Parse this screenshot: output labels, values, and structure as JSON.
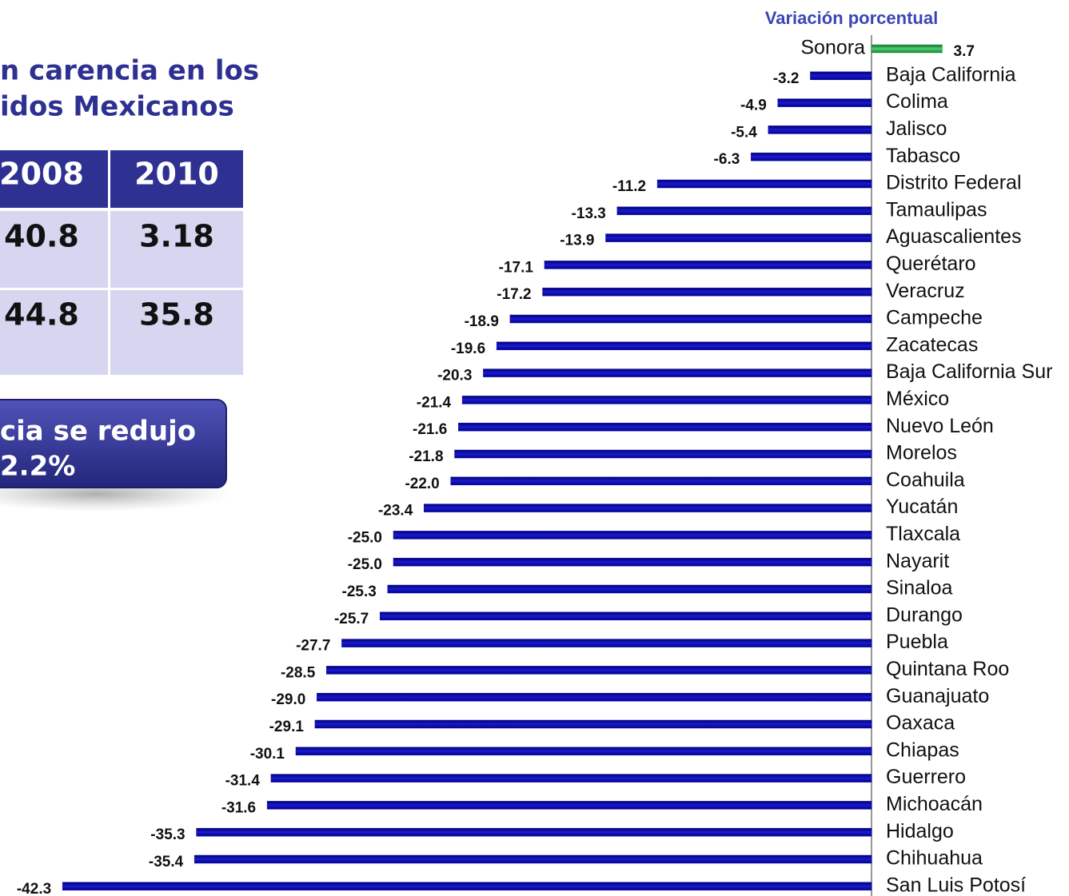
{
  "header": {
    "subtitle": [
      "n carencia en los",
      "idos Mexicanos"
    ]
  },
  "table": {
    "headers": [
      "2008",
      "2010"
    ],
    "rows": [
      [
        "40.8",
        "3.18"
      ],
      [
        "44.8",
        "35.8"
      ]
    ]
  },
  "callout": {
    "lines": [
      "cia se redujo",
      "2.2%"
    ]
  },
  "chart_data": {
    "type": "hbar",
    "title": "Variación porcentual",
    "categories": [
      "Sonora",
      "Baja California",
      "Colima",
      "Jalisco",
      "Tabasco",
      "Distrito Federal",
      "Tamaulipas",
      "Aguascalientes",
      "Querétaro",
      "Veracruz",
      "Campeche",
      "Zacatecas",
      "Baja California Sur",
      "México",
      "Nuevo León",
      "Morelos",
      "Coahuila",
      "Yucatán",
      "Tlaxcala",
      "Nayarit",
      "Sinaloa",
      "Durango",
      "Puebla",
      "Quintana Roo",
      "Guanajuato",
      "Oaxaca",
      "Chiapas",
      "Guerrero",
      "Michoacán",
      "Hidalgo",
      "Chihuahua",
      "San Luis Potosí"
    ],
    "values": [
      3.7,
      -3.2,
      -4.9,
      -5.4,
      -6.3,
      -11.2,
      -13.3,
      -13.9,
      -17.1,
      -17.2,
      -18.9,
      -19.6,
      -20.3,
      -21.4,
      -21.6,
      -21.8,
      -22.0,
      -23.4,
      -25.0,
      -25.0,
      -25.3,
      -25.7,
      -27.7,
      -28.5,
      -29.0,
      -29.1,
      -30.1,
      -31.4,
      -31.6,
      -35.3,
      -35.4,
      -42.3
    ],
    "value_labels": [
      "3.7",
      "-3.2",
      "-4.9",
      "-5.4",
      "-6.3",
      "-11.2",
      "-13.3",
      "-13.9",
      "-17.1",
      "-17.2",
      "-18.9",
      "-19.6",
      "-20.3",
      "-21.4",
      "-21.6",
      "-21.8",
      "-22.0",
      "-23.4",
      "-25.0",
      "-25.0",
      "-25.3",
      "-25.7",
      "-27.7",
      "-28.5",
      "-29.0",
      "-29.1",
      "-30.1",
      "-31.4",
      "-31.6",
      "-35.3",
      "-35.4",
      "-42.3"
    ],
    "colors": {
      "positive": "#2aa84a",
      "negative": "#1010b0"
    },
    "xlim": [
      -45,
      5
    ]
  }
}
